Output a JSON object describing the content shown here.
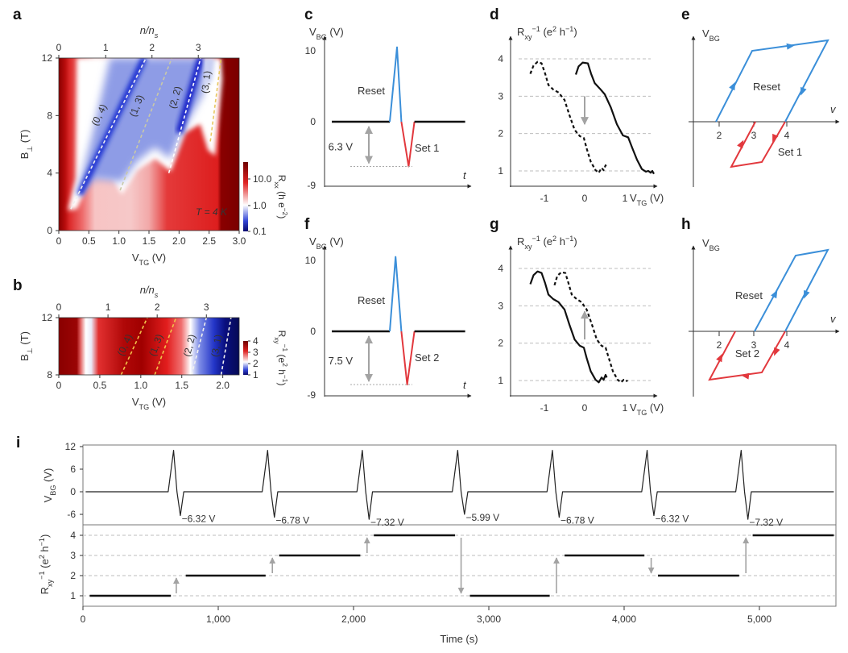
{
  "panel_labels": {
    "a": "a",
    "b": "b",
    "c": "c",
    "d": "d",
    "e": "e",
    "f": "f",
    "g": "g",
    "h": "h",
    "i": "i"
  },
  "colors": {
    "reset": "#3b8fd9",
    "set": "#e2383d",
    "arrow": "#a3a3a3",
    "trace": "#111111",
    "grid": "#bdbdbd"
  },
  "chart_data": [
    {
      "id": "a",
      "type": "heatmap",
      "xlabel": "V_{TG} (V)",
      "ylabel": "B_{⊥} (T)",
      "top_label": "n/n_{s}",
      "xlim": [
        0,
        3.0
      ],
      "ylim": [
        0,
        12
      ],
      "xticks": [
        "0",
        "0.5",
        "1.0",
        "1.5",
        "2.0",
        "2.5",
        "3.0"
      ],
      "xtick_values": [
        0,
        0.5,
        1.0,
        1.5,
        2.0,
        2.5,
        3.0
      ],
      "yticks": [
        0,
        4,
        8,
        12
      ],
      "top_ticks": [
        0,
        1,
        2,
        3
      ],
      "top_tick_positions_V": [
        0,
        0.78,
        1.55,
        2.32
      ],
      "colorbar": {
        "label": "R_{xx} (h e^{−2})",
        "scale": "log",
        "ticks": [
          "10.0",
          "1.0",
          "0.1"
        ],
        "colors": [
          "#7a0000",
          "#e02424",
          "#ffffff",
          "#3346d6",
          "#0a0a6e"
        ]
      },
      "annotation": "T = 4 K",
      "fan_lines": [
        {
          "label": "(0, 4)",
          "from": [
            0.2,
            1.5
          ],
          "to": [
            1.45,
            12
          ],
          "color": "#f0f0f0"
        },
        {
          "label": "(1, 3)",
          "from": [
            1.02,
            2.8
          ],
          "to": [
            1.88,
            12
          ],
          "color": "#c9c9a8"
        },
        {
          "label": "(2, 2)",
          "from": [
            1.83,
            4.0
          ],
          "to": [
            2.36,
            12
          ],
          "color": "#ffffff"
        },
        {
          "label": "(3, 1)",
          "from": [
            2.52,
            6.2
          ],
          "to": [
            2.7,
            12
          ],
          "color": "#e8c860"
        }
      ]
    },
    {
      "id": "b",
      "type": "heatmap",
      "xlabel": "V_{TG} (V)",
      "ylabel": "B_{⊥} (T)",
      "top_label": "n/n_{s}",
      "xlim": [
        0,
        2.2
      ],
      "ylim": [
        8,
        12
      ],
      "xticks": [
        "0",
        "0.5",
        "1.0",
        "1.5",
        "2.0"
      ],
      "xtick_values": [
        0,
        0.5,
        1.0,
        1.5,
        2.0
      ],
      "yticks": [
        8,
        12
      ],
      "top_ticks": [
        0,
        1,
        2,
        3
      ],
      "top_tick_positions_V": [
        0,
        0.6,
        1.2,
        1.8
      ],
      "colorbar": {
        "label": "R_{xy}^{−1} (e^{2} h^{−1})",
        "scale": "linear",
        "ticks": [
          "4",
          "3",
          "2",
          "1"
        ],
        "colors": [
          "#7a0000",
          "#e02424",
          "#ffffff",
          "#3346d6",
          "#0a0a6e"
        ]
      },
      "fan_lines": [
        {
          "label": "(0, 4)",
          "from": [
            0.76,
            8
          ],
          "to": [
            1.08,
            12
          ],
          "color": "#f2c24a"
        },
        {
          "label": "(1, 3)",
          "from": [
            1.17,
            8
          ],
          "to": [
            1.43,
            12
          ],
          "color": "#f2c24a"
        },
        {
          "label": "(2, 2)",
          "from": [
            1.62,
            8
          ],
          "to": [
            1.8,
            12
          ],
          "color": "#f0f0f0"
        },
        {
          "label": "(3, 1)",
          "from": [
            1.98,
            8
          ],
          "to": [
            2.1,
            12
          ],
          "color": "#f0f0f0"
        }
      ]
    },
    {
      "id": "c",
      "type": "line",
      "ylabel": "V_{BG} (V)",
      "xlabel": "t",
      "yticks": [
        10,
        0,
        -9
      ],
      "waveform": [
        [
          5,
          0
        ],
        [
          45,
          0
        ],
        [
          50,
          10.5
        ],
        [
          53,
          0
        ],
        [
          58,
          -6.3
        ],
        [
          62,
          0
        ],
        [
          97,
          0
        ]
      ],
      "reset_label": "Reset",
      "set_label": "Set 1",
      "amplitude_label": "6.3 V"
    },
    {
      "id": "d",
      "type": "line",
      "ylabel": "R_{xy}^{−1} (e^{2} h^{−1})",
      "xlabel": "V_{TG} (V)",
      "xticks": [
        -1,
        0,
        1
      ],
      "yticks": [
        1,
        2,
        3,
        4
      ],
      "grid": "dashed horizontal",
      "arrow": {
        "x": 0,
        "from": 3.0,
        "to": 2.25
      },
      "series": [
        {
          "style": "dashed",
          "points": [
            [
              -1.35,
              3.6
            ],
            [
              -1.27,
              3.82
            ],
            [
              -1.17,
              3.92
            ],
            [
              -1.07,
              3.88
            ],
            [
              -0.98,
              3.6
            ],
            [
              -0.9,
              3.3
            ],
            [
              -0.78,
              3.18
            ],
            [
              -0.65,
              3.1
            ],
            [
              -0.5,
              2.9
            ],
            [
              -0.38,
              2.5
            ],
            [
              -0.25,
              2.1
            ],
            [
              -0.12,
              1.93
            ],
            [
              -0.02,
              1.88
            ],
            [
              0.05,
              1.6
            ],
            [
              0.15,
              1.25
            ],
            [
              0.27,
              1.02
            ],
            [
              0.35,
              0.95
            ],
            [
              0.42,
              1.08
            ],
            [
              0.47,
              1.02
            ],
            [
              0.52,
              1.15
            ],
            [
              0.55,
              1.08
            ]
          ]
        },
        {
          "style": "solid",
          "points": [
            [
              -0.22,
              3.58
            ],
            [
              -0.15,
              3.8
            ],
            [
              -0.05,
              3.9
            ],
            [
              0.08,
              3.88
            ],
            [
              0.16,
              3.6
            ],
            [
              0.25,
              3.35
            ],
            [
              0.38,
              3.2
            ],
            [
              0.5,
              3.05
            ],
            [
              0.65,
              2.7
            ],
            [
              0.8,
              2.25
            ],
            [
              0.95,
              1.95
            ],
            [
              1.08,
              1.9
            ],
            [
              1.18,
              1.62
            ],
            [
              1.3,
              1.3
            ],
            [
              1.42,
              1.05
            ],
            [
              1.52,
              0.98
            ],
            [
              1.58,
              1.0
            ],
            [
              1.64,
              0.95
            ],
            [
              1.68,
              1.0
            ],
            [
              1.72,
              0.92
            ]
          ]
        }
      ]
    },
    {
      "id": "e",
      "type": "diagram",
      "ylabel": "V_{BG}",
      "xlabel": "v",
      "xticks": [
        2,
        3,
        4
      ],
      "reset_label": "Reset",
      "set_label": "Set 1"
    },
    {
      "id": "f",
      "type": "line",
      "ylabel": "V_{BG} (V)",
      "xlabel": "t",
      "yticks": [
        10,
        0,
        -9
      ],
      "waveform": [
        [
          5,
          0
        ],
        [
          45,
          0
        ],
        [
          49,
          10.5
        ],
        [
          53,
          0
        ],
        [
          57,
          -7.5
        ],
        [
          62,
          0
        ],
        [
          97,
          0
        ]
      ],
      "reset_label": "Reset",
      "set_label": "Set 2",
      "amplitude_label": "7.5 V"
    },
    {
      "id": "g",
      "type": "line",
      "ylabel": "R_{xy}^{−1} (e^{2} h^{−1})",
      "xlabel": "V_{TG} (V)",
      "xticks": [
        -1,
        0,
        1
      ],
      "yticks": [
        1,
        2,
        3,
        4
      ],
      "grid": "dashed horizontal",
      "arrow": {
        "x": 0,
        "from": 2.1,
        "to": 2.85
      },
      "series": [
        {
          "style": "solid",
          "points": [
            [
              -1.35,
              3.58
            ],
            [
              -1.27,
              3.82
            ],
            [
              -1.17,
              3.92
            ],
            [
              -1.07,
              3.88
            ],
            [
              -0.98,
              3.6
            ],
            [
              -0.9,
              3.3
            ],
            [
              -0.78,
              3.18
            ],
            [
              -0.65,
              3.1
            ],
            [
              -0.5,
              2.9
            ],
            [
              -0.38,
              2.5
            ],
            [
              -0.25,
              2.1
            ],
            [
              -0.12,
              1.93
            ],
            [
              -0.02,
              1.88
            ],
            [
              0.05,
              1.6
            ],
            [
              0.15,
              1.25
            ],
            [
              0.27,
              1.02
            ],
            [
              0.35,
              0.95
            ],
            [
              0.42,
              1.08
            ],
            [
              0.47,
              1.02
            ],
            [
              0.52,
              1.15
            ],
            [
              0.55,
              1.08
            ]
          ]
        },
        {
          "style": "dashed",
          "points": [
            [
              -0.75,
              3.55
            ],
            [
              -0.68,
              3.8
            ],
            [
              -0.58,
              3.9
            ],
            [
              -0.48,
              3.88
            ],
            [
              -0.4,
              3.6
            ],
            [
              -0.32,
              3.3
            ],
            [
              -0.2,
              3.18
            ],
            [
              -0.08,
              3.1
            ],
            [
              0.05,
              2.9
            ],
            [
              0.18,
              2.5
            ],
            [
              0.3,
              2.1
            ],
            [
              0.42,
              1.93
            ],
            [
              0.52,
              1.88
            ],
            [
              0.6,
              1.6
            ],
            [
              0.7,
              1.25
            ],
            [
              0.82,
              1.02
            ],
            [
              0.9,
              0.95
            ],
            [
              0.97,
              1.02
            ],
            [
              1.02,
              0.98
            ],
            [
              1.07,
              1.0
            ]
          ]
        }
      ]
    },
    {
      "id": "h",
      "type": "diagram",
      "ylabel": "V_{BG}",
      "xlabel": "v",
      "xticks": [
        2,
        3,
        4
      ],
      "reset_label": "Reset",
      "set_label": "Set 2"
    },
    {
      "id": "i",
      "type": "line",
      "xlabel": "Time (s)",
      "xlim": [
        0,
        5550
      ],
      "xticks": [
        "0",
        "1,000",
        "2,000",
        "3,000",
        "4,000",
        "5,000"
      ],
      "xtick_values": [
        0,
        1000,
        2000,
        3000,
        4000,
        5000
      ],
      "top": {
        "ylabel": "V_{BG} (V)",
        "yticks": [
          12,
          6,
          0,
          -6
        ],
        "pulses": [
          {
            "t": 670,
            "min": -6.32,
            "label": "−6.32 V"
          },
          {
            "t": 1365,
            "min": -6.78,
            "label": "−6.78 V"
          },
          {
            "t": 2065,
            "min": -7.32,
            "label": "−7.32 V"
          },
          {
            "t": 2770,
            "min": -5.99,
            "label": "−5.99 V"
          },
          {
            "t": 3470,
            "min": -6.78,
            "label": "−6.78 V"
          },
          {
            "t": 4170,
            "min": -6.32,
            "label": "−6.32 V"
          },
          {
            "t": 4865,
            "min": -7.32,
            "label": "−7.32 V"
          }
        ],
        "peak": 11
      },
      "bottom": {
        "ylabel": "R_{xy}^{−1} (e^{2} h^{−1})",
        "yticks": [
          4,
          3,
          2,
          1
        ],
        "steps": [
          [
            50,
            650,
            1
          ],
          [
            760,
            1350,
            2
          ],
          [
            1450,
            2050,
            3
          ],
          [
            2150,
            2750,
            4
          ],
          [
            2860,
            3450,
            1
          ],
          [
            3560,
            4150,
            3
          ],
          [
            4250,
            4850,
            2
          ],
          [
            4950,
            5550,
            4
          ]
        ],
        "transitions": [
          [
            690,
            1,
            2
          ],
          [
            1400,
            2,
            3
          ],
          [
            2100,
            3,
            4
          ],
          [
            2795,
            4,
            1
          ],
          [
            3500,
            1,
            3
          ],
          [
            4200,
            3,
            2
          ],
          [
            4900,
            2,
            4
          ]
        ]
      }
    }
  ]
}
